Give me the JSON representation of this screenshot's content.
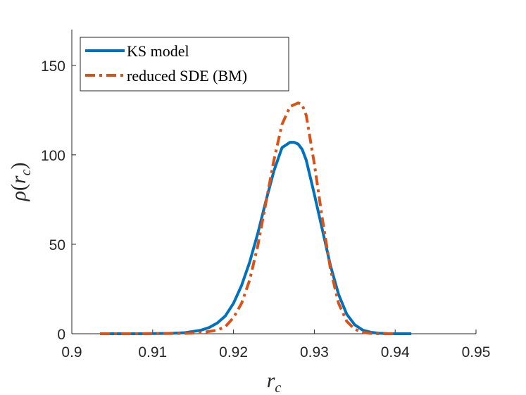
{
  "chart_data": {
    "type": "line",
    "title": "",
    "xlabel": "r_c",
    "ylabel": "ρ(r_c)",
    "xlim": [
      0.9,
      0.95
    ],
    "ylim": [
      0,
      170
    ],
    "xticks": [
      0.9,
      0.91,
      0.92,
      0.93,
      0.94,
      0.95
    ],
    "xtick_labels": [
      "0.9",
      "0.91",
      "0.92",
      "0.93",
      "0.94",
      "0.95"
    ],
    "yticks": [
      0,
      50,
      100,
      150
    ],
    "ytick_labels": [
      "0",
      "50",
      "100",
      "150"
    ],
    "grid": false,
    "legend_position": "top-left",
    "series": [
      {
        "name": "KS model",
        "color": "#0072BD",
        "style": "solid",
        "x": [
          0.9035,
          0.908,
          0.912,
          0.914,
          0.916,
          0.917,
          0.918,
          0.919,
          0.92,
          0.921,
          0.922,
          0.923,
          0.924,
          0.925,
          0.926,
          0.927,
          0.9275,
          0.928,
          0.9285,
          0.929,
          0.93,
          0.931,
          0.932,
          0.933,
          0.934,
          0.935,
          0.936,
          0.937,
          0.938,
          0.939,
          0.94,
          0.942
        ],
        "y": [
          0,
          0,
          0.2,
          0.6,
          2,
          3.5,
          6,
          10,
          17,
          27,
          40,
          56,
          74,
          91,
          104,
          107,
          107,
          106,
          103,
          97,
          78,
          58,
          38,
          22,
          11,
          5,
          2,
          0.8,
          0.3,
          0.1,
          0,
          0
        ]
      },
      {
        "name": "reduced SDE (BM)",
        "color": "#D95319",
        "style": "dashdot",
        "x": [
          0.9035,
          0.908,
          0.914,
          0.916,
          0.918,
          0.919,
          0.92,
          0.921,
          0.922,
          0.923,
          0.924,
          0.925,
          0.926,
          0.927,
          0.928,
          0.9285,
          0.929,
          0.93,
          0.931,
          0.932,
          0.933,
          0.934,
          0.935,
          0.936,
          0.937,
          0.938,
          0.94
        ],
        "y": [
          0,
          0,
          0.2,
          0.6,
          2,
          4,
          9,
          17,
          30,
          49,
          73,
          97,
          117,
          127,
          129,
          128,
          122,
          95,
          64,
          36,
          17,
          7,
          2.5,
          0.8,
          0.2,
          0,
          0
        ]
      }
    ]
  }
}
